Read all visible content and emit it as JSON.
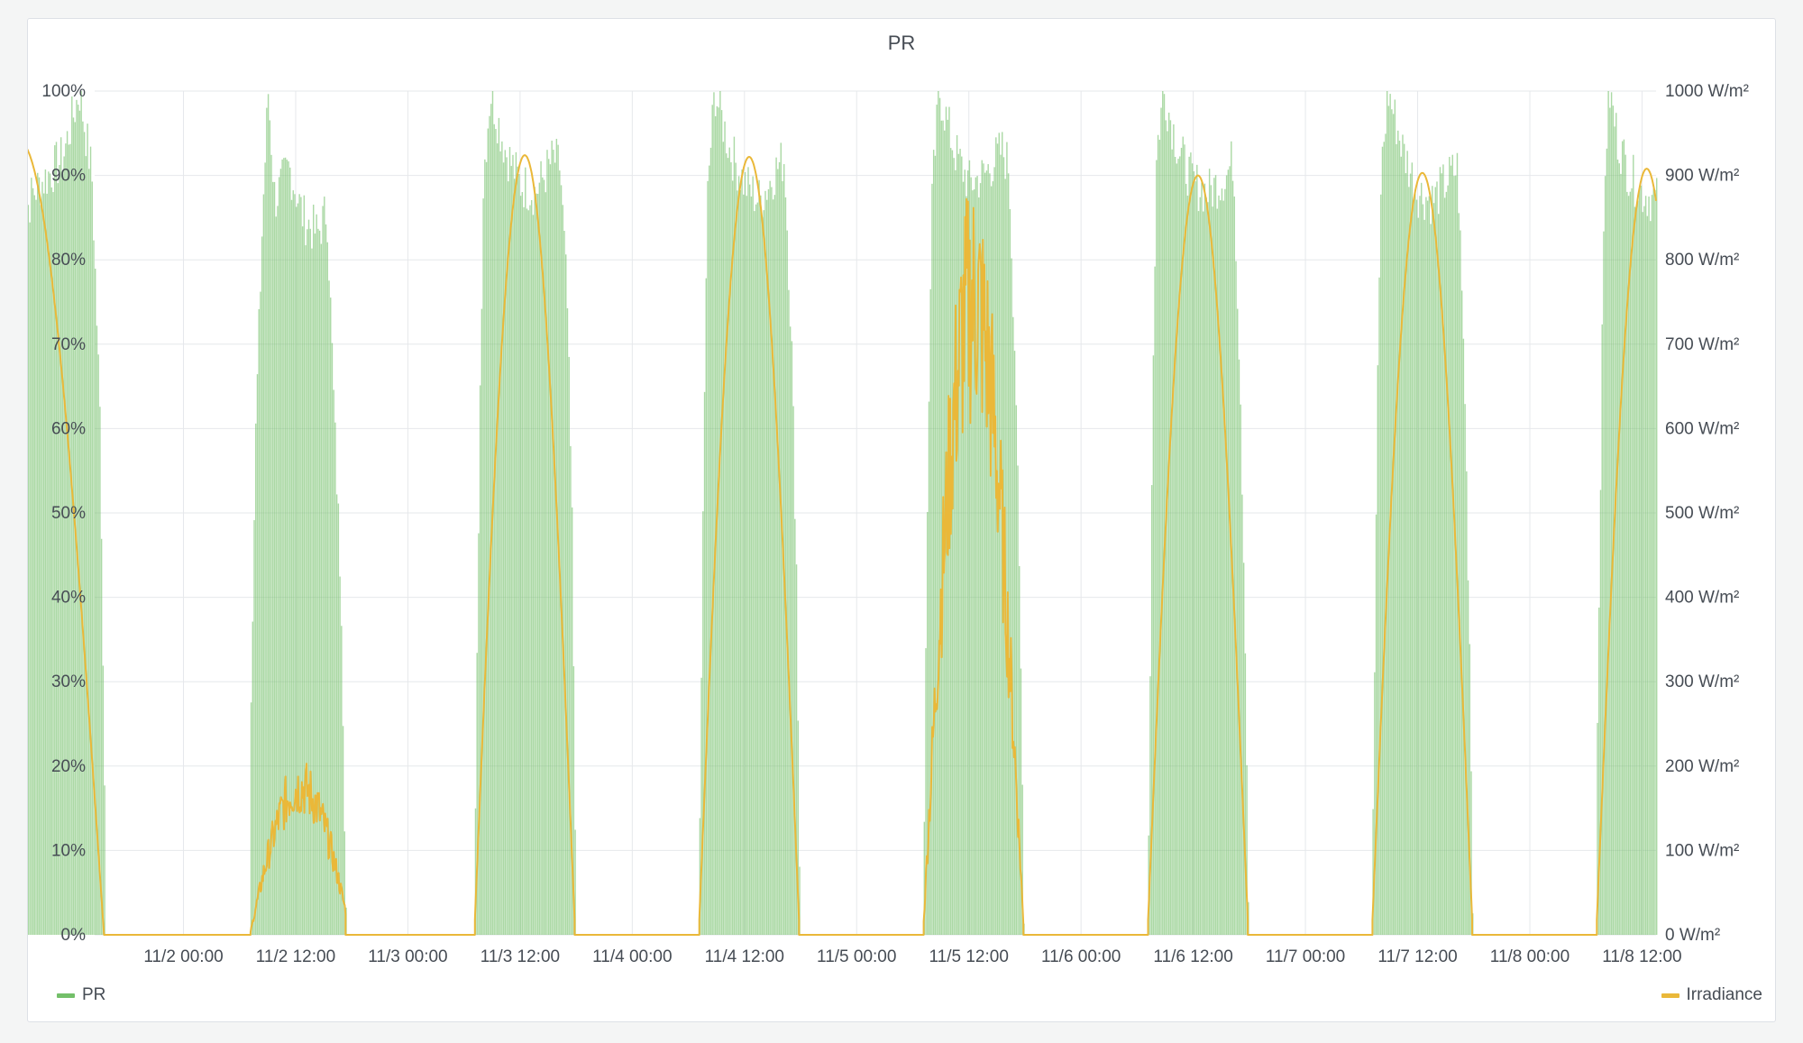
{
  "chart_data": {
    "type": "bar",
    "title": "PR",
    "x_axis": {
      "min": "2023-11-01T14:30",
      "max": "2023-11-08T13:30",
      "tick_labels": [
        "11/2 00:00",
        "11/2 12:00",
        "11/3 00:00",
        "11/3 12:00",
        "11/4 00:00",
        "11/4 12:00",
        "11/5 00:00",
        "11/5 12:00",
        "11/6 00:00",
        "11/6 12:00",
        "11/7 00:00",
        "11/7 12:00",
        "11/8 00:00",
        "11/8 12:00"
      ]
    },
    "y_left": {
      "min": 0,
      "max": 100,
      "tick_labels": [
        "0%",
        "10%",
        "20%",
        "30%",
        "40%",
        "50%",
        "60%",
        "70%",
        "80%",
        "90%",
        "100%"
      ]
    },
    "y_right": {
      "min": 0,
      "max": 1000,
      "tick_labels": [
        "0 W/m²",
        "100 W/m²",
        "200 W/m²",
        "300 W/m²",
        "400 W/m²",
        "500 W/m²",
        "600 W/m²",
        "700 W/m²",
        "800 W/m²",
        "900 W/m²",
        "1000 W/m²"
      ]
    },
    "grid": true,
    "legend_left": "bottom-left",
    "legend_right": "bottom-right",
    "series": [
      {
        "name": "PR",
        "type": "bar",
        "axis": "left",
        "unit": "%",
        "color": "#73bf69",
        "days": [
          {
            "date": "2023-11-01",
            "start": "06:30",
            "end": "15:30",
            "profile": [
              [
                0,
                84
              ],
              [
                0.15,
                88
              ],
              [
                0.5,
                92
              ],
              [
                0.7,
                100
              ],
              [
                0.85,
                90
              ],
              [
                0.95,
                60
              ],
              [
                1,
                18
              ]
            ],
            "partial": true
          },
          {
            "date": "2023-11-02",
            "start": "07:10",
            "end": "17:20",
            "profile": [
              [
                0,
                30
              ],
              [
                0.05,
                60
              ],
              [
                0.12,
                85
              ],
              [
                0.18,
                100
              ],
              [
                0.25,
                87
              ],
              [
                0.4,
                91
              ],
              [
                0.55,
                85
              ],
              [
                0.7,
                83
              ],
              [
                0.8,
                86
              ],
              [
                0.88,
                60
              ],
              [
                0.95,
                40
              ],
              [
                1,
                3
              ]
            ]
          },
          {
            "date": "2023-11-03",
            "start": "07:10",
            "end": "17:50",
            "profile": [
              [
                0,
                13
              ],
              [
                0.04,
                60
              ],
              [
                0.08,
                90
              ],
              [
                0.15,
                100
              ],
              [
                0.3,
                93
              ],
              [
                0.45,
                89
              ],
              [
                0.6,
                88
              ],
              [
                0.78,
                92
              ],
              [
                0.85,
                91
              ],
              [
                0.92,
                75
              ],
              [
                0.97,
                48
              ],
              [
                1,
                15
              ]
            ]
          },
          {
            "date": "2023-11-04",
            "start": "07:10",
            "end": "17:50",
            "profile": [
              [
                0,
                11
              ],
              [
                0.04,
                60
              ],
              [
                0.08,
                89
              ],
              [
                0.15,
                100
              ],
              [
                0.3,
                93
              ],
              [
                0.45,
                89
              ],
              [
                0.6,
                87
              ],
              [
                0.78,
                91
              ],
              [
                0.85,
                92
              ],
              [
                0.92,
                70
              ],
              [
                0.97,
                43
              ],
              [
                1,
                9
              ]
            ]
          },
          {
            "date": "2023-11-05",
            "start": "07:10",
            "end": "17:50",
            "profile": [
              [
                0,
                15
              ],
              [
                0.04,
                60
              ],
              [
                0.08,
                88
              ],
              [
                0.15,
                100
              ],
              [
                0.3,
                93
              ],
              [
                0.45,
                89
              ],
              [
                0.6,
                90
              ],
              [
                0.78,
                93
              ],
              [
                0.85,
                91
              ],
              [
                0.92,
                65
              ],
              [
                0.97,
                30
              ],
              [
                1,
                4
              ]
            ]
          },
          {
            "date": "2023-11-06",
            "start": "07:10",
            "end": "17:50",
            "profile": [
              [
                0,
                12
              ],
              [
                0.04,
                65
              ],
              [
                0.08,
                93
              ],
              [
                0.15,
                100
              ],
              [
                0.3,
                93
              ],
              [
                0.45,
                89
              ],
              [
                0.6,
                88
              ],
              [
                0.78,
                90
              ],
              [
                0.85,
                92
              ],
              [
                0.92,
                65
              ],
              [
                0.97,
                35
              ],
              [
                1,
                5
              ]
            ]
          },
          {
            "date": "2023-11-07",
            "start": "07:10",
            "end": "17:50",
            "profile": [
              [
                0,
                13
              ],
              [
                0.04,
                60
              ],
              [
                0.08,
                90
              ],
              [
                0.15,
                100
              ],
              [
                0.3,
                93
              ],
              [
                0.45,
                88
              ],
              [
                0.6,
                87
              ],
              [
                0.78,
                90
              ],
              [
                0.85,
                91
              ],
              [
                0.92,
                65
              ],
              [
                0.97,
                34
              ],
              [
                1,
                5
              ]
            ]
          },
          {
            "date": "2023-11-08",
            "start": "07:10",
            "end": "13:30",
            "profile": [
              [
                0,
                25
              ],
              [
                0.06,
                60
              ],
              [
                0.12,
                90
              ],
              [
                0.2,
                100
              ],
              [
                0.35,
                94
              ],
              [
                0.55,
                90
              ],
              [
                0.75,
                88
              ],
              [
                1,
                87
              ]
            ],
            "partial": true
          }
        ]
      },
      {
        "name": "Irradiance",
        "type": "line",
        "axis": "right",
        "unit": "W/m²",
        "color": "#eab839",
        "days": [
          {
            "date": "2023-11-01",
            "peak": 940,
            "start": "06:30",
            "end": "15:30",
            "partial": true
          },
          {
            "date": "2023-11-02",
            "peak": 200,
            "start": "07:10",
            "end": "17:20",
            "cloudy": true
          },
          {
            "date": "2023-11-03",
            "peak": 924,
            "start": "07:10",
            "end": "17:50"
          },
          {
            "date": "2023-11-04",
            "peak": 922,
            "start": "07:10",
            "end": "17:50"
          },
          {
            "date": "2023-11-05",
            "peak": 860,
            "start": "07:10",
            "end": "17:50",
            "cloudy": true
          },
          {
            "date": "2023-11-06",
            "peak": 900,
            "start": "07:10",
            "end": "17:50"
          },
          {
            "date": "2023-11-07",
            "peak": 903,
            "start": "07:10",
            "end": "17:50"
          },
          {
            "date": "2023-11-08",
            "peak": 908,
            "start": "07:10",
            "end": "13:30",
            "partial": true
          }
        ]
      }
    ]
  },
  "legend": {
    "left_label": "PR",
    "right_label": "Irradiance"
  }
}
